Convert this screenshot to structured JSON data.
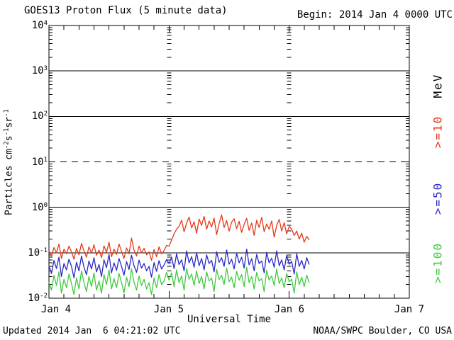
{
  "header": {
    "title": "GOES13 Proton Flux (5 minute data)",
    "begin": "Begin: 2014 Jan 4 0000 UTC"
  },
  "footer": {
    "updated": "Updated 2014 Jan  6 04:21:02 UTC",
    "source": "NOAA/SWPC Boulder, CO USA"
  },
  "axes": {
    "x_title": "Universal Time",
    "x_ticks": [
      {
        "label": "Jan 4",
        "hours": 0
      },
      {
        "label": "Jan 5",
        "hours": 24
      },
      {
        "label": "Jan 6",
        "hours": 48
      },
      {
        "label": "Jan 7",
        "hours": 72
      }
    ],
    "y_title_parts": [
      {
        "t": "Particles cm"
      },
      {
        "t": "-2",
        "sup": true
      },
      {
        "t": "s"
      },
      {
        "t": "-1",
        "sup": true
      },
      {
        "t": "sr"
      },
      {
        "t": "-1",
        "sup": true
      }
    ],
    "y_ticks": [
      {
        "exp": "4"
      },
      {
        "exp": "3"
      },
      {
        "exp": "2"
      },
      {
        "exp": "1"
      },
      {
        "exp": "0"
      },
      {
        "exp": "-1"
      },
      {
        "exp": "-2"
      }
    ],
    "unit_label": "MeV"
  },
  "side_labels": [
    {
      "text": "MeV",
      "color": "#000000"
    },
    {
      "text": ">=10",
      "color": "#e5391a"
    },
    {
      "text": ">=50",
      "color": "#2929c8"
    },
    {
      "text": ">=100",
      "color": "#3ecb3e"
    }
  ],
  "chart_data": {
    "type": "line",
    "title": "GOES13 Proton Flux (5 minute data)",
    "xlabel": "Universal Time",
    "ylabel": "Particles cm^-2 s^-1 sr^-1",
    "begin_time": "2014 Jan 4 0000 UTC",
    "y_scale": "log",
    "ylim": [
      0.01,
      10000
    ],
    "x_range_hours": [
      0,
      72
    ],
    "x_day_labels": [
      "Jan 4",
      "Jan 5",
      "Jan 6",
      "Jan 7"
    ],
    "x_minor_tick_hours": 3,
    "x_start_hours": 0,
    "x_step_hours": 0.5,
    "dashed_gridline_y": 10,
    "legend_position": "right",
    "series": [
      {
        "name": ">=10 MeV",
        "key": "ge10",
        "color": "#e5391a",
        "values": [
          0.11,
          0.085,
          0.13,
          0.1,
          0.155,
          0.075,
          0.12,
          0.095,
          0.14,
          0.105,
          0.072,
          0.125,
          0.09,
          0.16,
          0.11,
          0.08,
          0.135,
          0.098,
          0.15,
          0.088,
          0.115,
          0.078,
          0.142,
          0.102,
          0.17,
          0.082,
          0.12,
          0.092,
          0.155,
          0.108,
          0.075,
          0.128,
          0.095,
          0.21,
          0.115,
          0.085,
          0.14,
          0.1,
          0.125,
          0.09,
          0.105,
          0.068,
          0.118,
          0.082,
          0.135,
          0.095,
          0.112,
          0.145,
          0.14,
          0.19,
          0.26,
          0.33,
          0.38,
          0.52,
          0.29,
          0.45,
          0.61,
          0.35,
          0.48,
          0.27,
          0.55,
          0.4,
          0.63,
          0.33,
          0.5,
          0.37,
          0.58,
          0.25,
          0.44,
          0.68,
          0.36,
          0.51,
          0.3,
          0.47,
          0.56,
          0.34,
          0.49,
          0.28,
          0.42,
          0.57,
          0.31,
          0.45,
          0.24,
          0.52,
          0.36,
          0.6,
          0.29,
          0.43,
          0.33,
          0.5,
          0.22,
          0.4,
          0.54,
          0.3,
          0.46,
          0.26,
          0.38,
          0.33,
          0.24,
          0.3,
          0.2,
          0.27,
          0.17,
          0.23,
          0.19
        ]
      },
      {
        "name": ">=50 MeV",
        "key": "ge50",
        "color": "#2929c8",
        "values": [
          0.052,
          0.035,
          0.068,
          0.045,
          0.08,
          0.03,
          0.058,
          0.042,
          0.072,
          0.05,
          0.028,
          0.062,
          0.04,
          0.085,
          0.048,
          0.033,
          0.066,
          0.044,
          0.078,
          0.038,
          0.055,
          0.03,
          0.07,
          0.047,
          0.092,
          0.036,
          0.06,
          0.041,
          0.075,
          0.05,
          0.032,
          0.064,
          0.043,
          0.088,
          0.052,
          0.037,
          0.069,
          0.046,
          0.058,
          0.04,
          0.05,
          0.029,
          0.061,
          0.039,
          0.067,
          0.044,
          0.054,
          0.071,
          0.058,
          0.08,
          0.045,
          0.095,
          0.055,
          0.07,
          0.04,
          0.11,
          0.06,
          0.082,
          0.048,
          0.1,
          0.052,
          0.075,
          0.042,
          0.09,
          0.058,
          0.068,
          0.038,
          0.105,
          0.062,
          0.078,
          0.05,
          0.115,
          0.056,
          0.072,
          0.044,
          0.098,
          0.06,
          0.08,
          0.046,
          0.12,
          0.054,
          0.074,
          0.04,
          0.092,
          0.058,
          0.066,
          0.036,
          0.102,
          0.06,
          0.076,
          0.048,
          0.11,
          0.052,
          0.07,
          0.042,
          0.088,
          0.056,
          0.064,
          0.034,
          0.095,
          0.05,
          0.068,
          0.044,
          0.078,
          0.055
        ]
      },
      {
        "name": ">=100 MeV",
        "key": "ge100",
        "color": "#3ecb3e",
        "values": [
          0.023,
          0.015,
          0.032,
          0.019,
          0.038,
          0.013,
          0.026,
          0.017,
          0.034,
          0.021,
          0.012,
          0.028,
          0.016,
          0.04,
          0.022,
          0.014,
          0.03,
          0.018,
          0.036,
          0.015,
          0.024,
          0.013,
          0.033,
          0.02,
          0.042,
          0.016,
          0.027,
          0.017,
          0.035,
          0.022,
          0.013,
          0.029,
          0.018,
          0.044,
          0.023,
          0.015,
          0.031,
          0.019,
          0.026,
          0.016,
          0.022,
          0.012,
          0.028,
          0.017,
          0.033,
          0.02,
          0.024,
          0.037,
          0.025,
          0.036,
          0.018,
          0.042,
          0.022,
          0.031,
          0.015,
          0.045,
          0.026,
          0.034,
          0.019,
          0.04,
          0.021,
          0.03,
          0.016,
          0.038,
          0.024,
          0.028,
          0.014,
          0.043,
          0.026,
          0.032,
          0.02,
          0.046,
          0.023,
          0.029,
          0.017,
          0.039,
          0.025,
          0.033,
          0.018,
          0.048,
          0.022,
          0.03,
          0.016,
          0.037,
          0.024,
          0.027,
          0.014,
          0.041,
          0.025,
          0.031,
          0.019,
          0.044,
          0.021,
          0.028,
          0.017,
          0.035,
          0.023,
          0.026,
          0.013,
          0.038,
          0.02,
          0.029,
          0.018,
          0.032,
          0.022
        ]
      }
    ]
  }
}
